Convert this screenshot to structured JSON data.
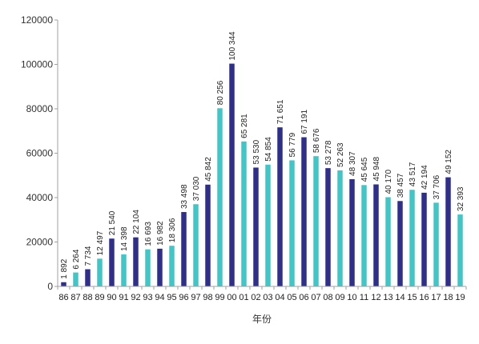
{
  "chart_data": {
    "type": "bar",
    "xlabel": "年份",
    "ylabel": "",
    "ylim": [
      0,
      120000
    ],
    "yticks": [
      0,
      20000,
      40000,
      60000,
      80000,
      100000,
      120000
    ],
    "ytick_labels": [
      "0",
      "20000",
      "40000",
      "60000",
      "80000",
      "100000",
      "120000"
    ],
    "grid": false,
    "legend": "none",
    "colors": {
      "dark": "#2e2e8e",
      "light": "#3cc8c8",
      "axis": "#a0a0a0"
    },
    "categories": [
      "86",
      "87",
      "88",
      "89",
      "90",
      "91",
      "92",
      "93",
      "94",
      "95",
      "96",
      "97",
      "98",
      "99",
      "00",
      "01",
      "02",
      "03",
      "04",
      "05",
      "06",
      "07",
      "08",
      "09",
      "10",
      "11",
      "12",
      "13",
      "14",
      "15",
      "16",
      "17",
      "18",
      "19"
    ],
    "values": [
      1892,
      6264,
      7734,
      12497,
      21540,
      14398,
      22104,
      16693,
      16982,
      18306,
      33498,
      37030,
      45842,
      80256,
      100344,
      65281,
      53530,
      54854,
      71651,
      56779,
      67191,
      58676,
      53278,
      52263,
      48307,
      45645,
      45948,
      40170,
      38457,
      43517,
      42194,
      37706,
      49152,
      32393
    ],
    "value_labels": [
      "1 892",
      "6 264",
      "7 734",
      "12 497",
      "21 540",
      "14 398",
      "22 104",
      "16 693",
      "16 982",
      "18 306",
      "33 498",
      "37 030",
      "45 842",
      "80 256",
      "100 344",
      "65 281",
      "53 530",
      "54 854",
      "71 651",
      "56 779",
      "67 191",
      "58 676",
      "53 278",
      "52 263",
      "48 307",
      "45 645",
      "45 948",
      "40 170",
      "38 457",
      "43 517",
      "42 194",
      "37 706",
      "49 152",
      "32 393"
    ],
    "bar_colors": [
      "dark",
      "light",
      "dark",
      "light",
      "dark",
      "light",
      "dark",
      "light",
      "dark",
      "light",
      "dark",
      "light",
      "dark",
      "light",
      "dark",
      "light",
      "dark",
      "light",
      "dark",
      "light",
      "dark",
      "light",
      "dark",
      "light",
      "dark",
      "light",
      "dark",
      "light",
      "dark",
      "light",
      "dark",
      "light",
      "dark",
      "light"
    ]
  }
}
